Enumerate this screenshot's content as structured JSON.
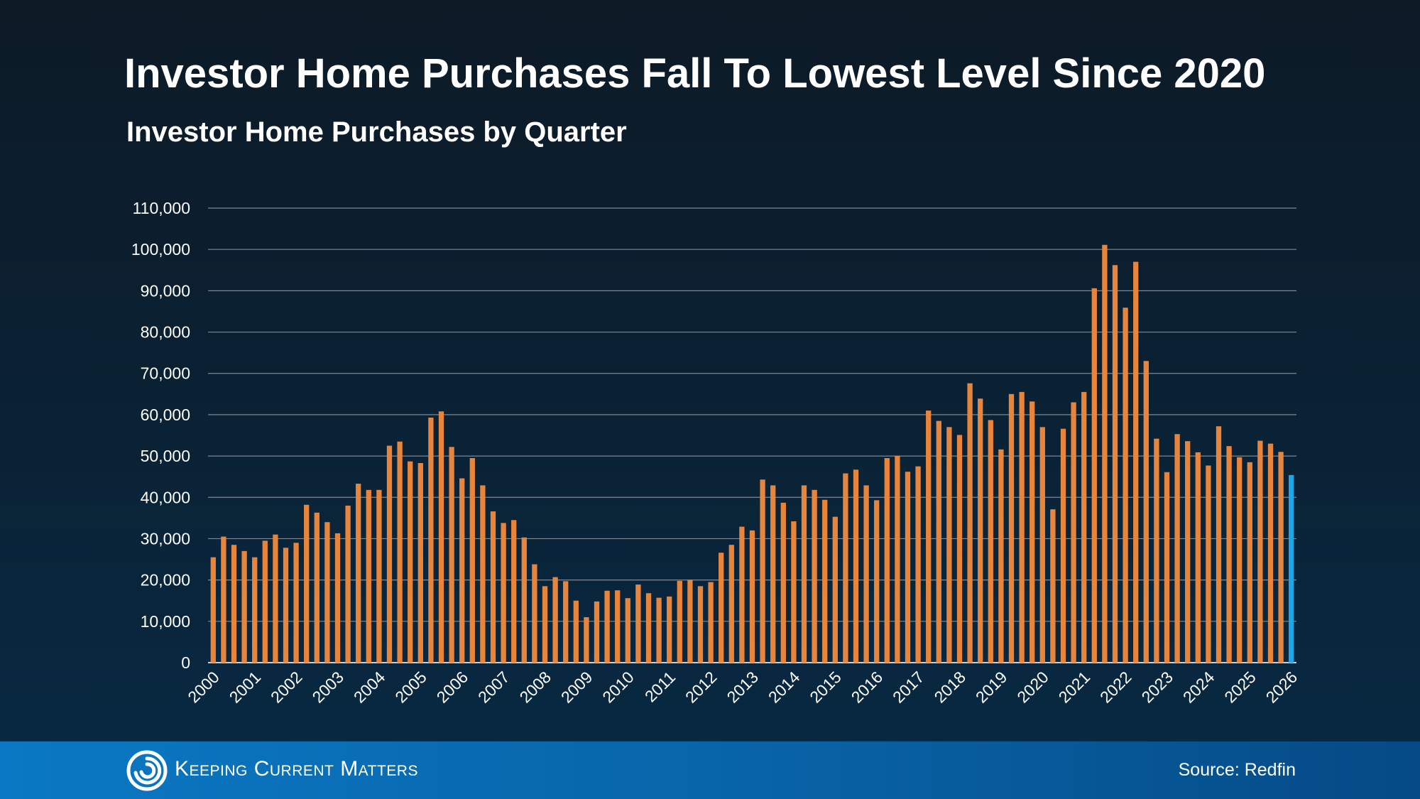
{
  "header": {
    "title": "Investor Home Purchases Fall To Lowest Level Since 2020",
    "subtitle": "Investor Home Purchases by Quarter"
  },
  "footer": {
    "brand": "Keeping Current Matters",
    "source": "Source: Redfin"
  },
  "colors": {
    "bar": "#e8853d",
    "highlight_bar": "#1ea7e8",
    "grid": "#7d8892"
  },
  "icons": {
    "logo": "kcm-swirl-icon"
  },
  "chart_data": {
    "type": "bar",
    "title": "Investor Home Purchases by Quarter",
    "xlabel": "",
    "ylabel": "",
    "ylim": [
      0,
      110000
    ],
    "y_ticks": [
      "0",
      "10,000",
      "20,000",
      "30,000",
      "40,000",
      "50,000",
      "60,000",
      "70,000",
      "80,000",
      "90,000",
      "100,000",
      "110,000"
    ],
    "x_ticks": [
      "2000",
      "2001",
      "2002",
      "2003",
      "2004",
      "2005",
      "2006",
      "2007",
      "2008",
      "2009",
      "2010",
      "2011",
      "2012",
      "2013",
      "2014",
      "2015",
      "2016",
      "2017",
      "2018",
      "2019",
      "2020",
      "2021",
      "2022",
      "2023",
      "2024",
      "2025",
      "2026"
    ],
    "grid": true,
    "legend": "none",
    "highlight_last": true,
    "categories": [
      "2000 Q1",
      "2000 Q2",
      "2000 Q3",
      "2000 Q4",
      "2001 Q1",
      "2001 Q2",
      "2001 Q3",
      "2001 Q4",
      "2002 Q1",
      "2002 Q2",
      "2002 Q3",
      "2002 Q4",
      "2003 Q1",
      "2003 Q2",
      "2003 Q3",
      "2003 Q4",
      "2004 Q1",
      "2004 Q2",
      "2004 Q3",
      "2004 Q4",
      "2005 Q1",
      "2005 Q2",
      "2005 Q3",
      "2005 Q4",
      "2006 Q1",
      "2006 Q2",
      "2006 Q3",
      "2006 Q4",
      "2007 Q1",
      "2007 Q2",
      "2007 Q3",
      "2007 Q4",
      "2008 Q1",
      "2008 Q2",
      "2008 Q3",
      "2008 Q4",
      "2009 Q1",
      "2009 Q2",
      "2009 Q3",
      "2009 Q4",
      "2010 Q1",
      "2010 Q2",
      "2010 Q3",
      "2010 Q4",
      "2011 Q1",
      "2011 Q2",
      "2011 Q3",
      "2011 Q4",
      "2012 Q1",
      "2012 Q2",
      "2012 Q3",
      "2012 Q4",
      "2013 Q1",
      "2013 Q2",
      "2013 Q3",
      "2013 Q4",
      "2014 Q1",
      "2014 Q2",
      "2014 Q3",
      "2014 Q4",
      "2015 Q1",
      "2015 Q2",
      "2015 Q3",
      "2015 Q4",
      "2016 Q1",
      "2016 Q2",
      "2016 Q3",
      "2016 Q4",
      "2017 Q1",
      "2017 Q2",
      "2017 Q3",
      "2017 Q4",
      "2018 Q1",
      "2018 Q2",
      "2018 Q3",
      "2018 Q4",
      "2019 Q1",
      "2019 Q2",
      "2019 Q3",
      "2019 Q4",
      "2020 Q1",
      "2020 Q2",
      "2020 Q3",
      "2020 Q4",
      "2021 Q1",
      "2021 Q2",
      "2021 Q3",
      "2021 Q4",
      "2022 Q1",
      "2022 Q2",
      "2022 Q3",
      "2022 Q4",
      "2023 Q1",
      "2023 Q2",
      "2023 Q3",
      "2023 Q4",
      "2024 Q1",
      "2024 Q2",
      "2024 Q3",
      "2024 Q4",
      "2025 Q1",
      "2025 Q2",
      "2025 Q3",
      "2025 Q4",
      "2026 Q1"
    ],
    "values": [
      25500,
      30500,
      28500,
      27000,
      25500,
      29500,
      31000,
      27800,
      29000,
      38200,
      36300,
      34000,
      31300,
      38000,
      43300,
      41800,
      41800,
      52500,
      53500,
      48700,
      48300,
      59300,
      60800,
      52200,
      44600,
      49500,
      42900,
      36600,
      33800,
      34500,
      30300,
      23800,
      18500,
      20700,
      19700,
      15000,
      11000,
      14800,
      17400,
      17500,
      15600,
      18900,
      16800,
      15700,
      16000,
      19800,
      20000,
      18500,
      19500,
      26600,
      28500,
      32900,
      32000,
      44300,
      42900,
      38700,
      34200,
      42900,
      41800,
      39400,
      35300,
      45800,
      46700,
      42900,
      39300,
      49500,
      50100,
      46200,
      47500,
      61000,
      58500,
      57000,
      55100,
      67600,
      63900,
      58700,
      51600,
      65000,
      65500,
      63200,
      57000,
      37100,
      56600,
      63000,
      65500,
      90600,
      101100,
      96200,
      85900,
      97000,
      73000,
      54200,
      46100,
      55300,
      53600,
      50900,
      47700,
      57200,
      52400,
      49700,
      48500,
      53700,
      53000,
      51000,
      45400
    ]
  }
}
